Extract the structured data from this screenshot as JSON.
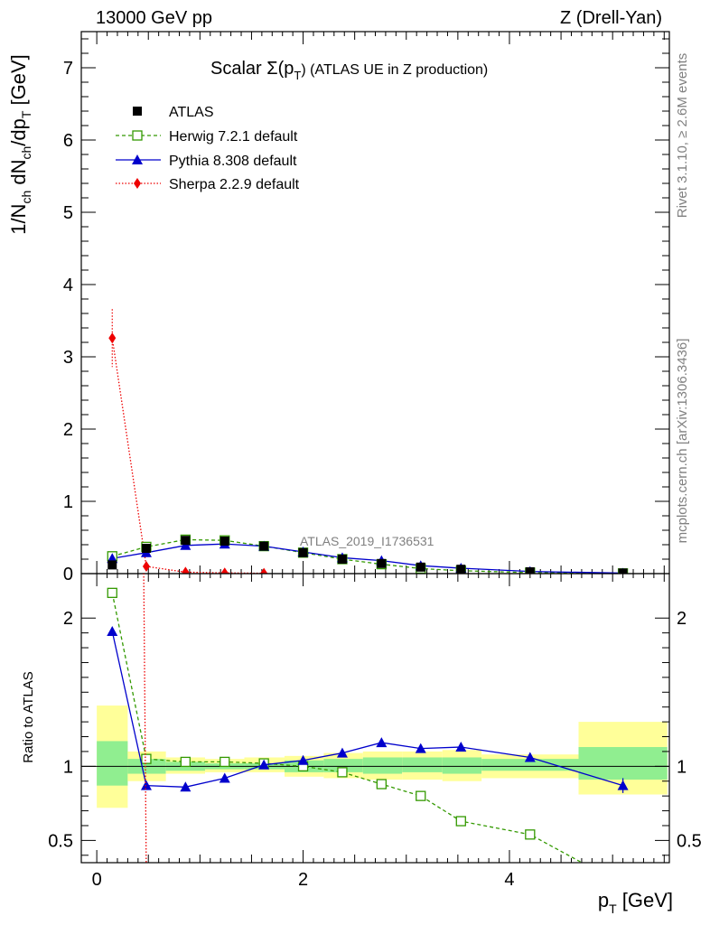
{
  "header": {
    "left": "13000 GeV pp",
    "right": "Z (Drell-Yan)"
  },
  "side_text": {
    "rivet": "Rivet 3.1.10, ≥ 2.6M events",
    "mcplots": "mcplots.cern.ch [arXiv:1306.3436]"
  },
  "watermark": "ATLAS_2019_I1736531",
  "chart_data": {
    "type": "scatter",
    "title": "Scalar Σ(pT) (ATLAS UE in Z production)",
    "title_main": "Scalar Σ(p",
    "title_sub": "T",
    "title_rest": ") (ATLAS UE in Z production)",
    "ylabel_main": "1/N",
    "ylabel_sub1": "ch",
    "ylabel_mid": " dN",
    "ylabel_sub2": "ch",
    "ylabel_mid2": "/dp",
    "ylabel_sub3": "T",
    "ylabel_unit": " [GeV]",
    "xlabel_main": "p",
    "xlabel_sub": "T",
    "xlabel_unit": " [GeV]",
    "ratio_ylabel": "Ratio to ATLAS",
    "xlim": [
      -0.15,
      5.55
    ],
    "ylim_main": [
      0,
      7.5
    ],
    "ylim_ratio": [
      0.35,
      2.3
    ],
    "x_ticks": [
      "0",
      "2",
      "4"
    ],
    "y_ticks_main": [
      "0",
      "1",
      "2",
      "3",
      "4",
      "5",
      "6",
      "7"
    ],
    "y_ticks_ratio": [
      "0.5",
      "1",
      "2"
    ],
    "legend_position": "top-left",
    "x": [
      0.15,
      0.48,
      0.86,
      1.24,
      1.62,
      2.0,
      2.38,
      2.76,
      3.14,
      3.53,
      4.2,
      5.1
    ],
    "bin_edges": [
      0.0,
      0.3,
      0.67,
      1.05,
      1.43,
      1.82,
      2.2,
      2.58,
      2.96,
      3.35,
      3.73,
      4.67,
      5.53
    ],
    "series": [
      {
        "name": "ATLAS",
        "color": "#000000",
        "marker": "square",
        "values": [
          0.12,
          0.35,
          0.46,
          0.45,
          0.38,
          0.29,
          0.2,
          0.14,
          0.09,
          0.06,
          0.025,
          0.008
        ]
      },
      {
        "name": "Herwig 7.2.1 default",
        "color": "#339900",
        "marker": "open-square",
        "line": "dashed",
        "values": [
          0.24,
          0.37,
          0.47,
          0.46,
          0.38,
          0.29,
          0.2,
          0.13,
          0.07,
          0.04,
          0.014,
          0.003
        ],
        "ratio": [
          2.17,
          1.05,
          1.03,
          1.03,
          1.02,
          1.0,
          0.96,
          0.88,
          0.8,
          0.63,
          0.54,
          0.2
        ]
      },
      {
        "name": "Pythia 8.308 default",
        "color": "#0000cc",
        "marker": "triangle",
        "line": "solid",
        "values": [
          0.21,
          0.29,
          0.39,
          0.41,
          0.38,
          0.3,
          0.22,
          0.18,
          0.11,
          0.075,
          0.03,
          0.007
        ],
        "ratio": [
          1.91,
          0.87,
          0.86,
          0.92,
          1.01,
          1.04,
          1.09,
          1.16,
          1.12,
          1.13,
          1.06,
          0.87
        ],
        "ratio_err": [
          0.03,
          0.01,
          0.01,
          0.01,
          0.01,
          0.01,
          0.01,
          0.02,
          0.02,
          0.02,
          0.03,
          0.05
        ]
      },
      {
        "name": "Sherpa 2.2.9 default",
        "color": "#ee0000",
        "marker": "diamond",
        "line": "dotted",
        "x": [
          0.15,
          0.48,
          0.86,
          1.24,
          1.62
        ],
        "values": [
          3.26,
          0.1,
          0.02,
          0.01,
          0.005
        ],
        "err_low": [
          0.4,
          0.01,
          0.005,
          0.003,
          0.002
        ],
        "err_high": [
          0.4,
          0.01,
          0.005,
          0.003,
          0.002
        ],
        "ratio": [
          27.0,
          0.29,
          0.04,
          0.02,
          0.01
        ]
      }
    ],
    "ratio_bands": {
      "green_low": [
        0.87,
        0.95,
        0.97,
        0.98,
        0.98,
        0.96,
        0.96,
        0.95,
        0.96,
        0.95,
        0.97,
        0.91
      ],
      "green_high": [
        1.17,
        1.05,
        1.03,
        1.02,
        1.02,
        1.04,
        1.05,
        1.06,
        1.06,
        1.06,
        1.05,
        1.13
      ],
      "yellow_low": [
        0.72,
        0.9,
        0.95,
        0.96,
        0.96,
        0.93,
        0.92,
        0.91,
        0.91,
        0.9,
        0.92,
        0.81
      ],
      "yellow_high": [
        1.41,
        1.1,
        1.06,
        1.05,
        1.06,
        1.07,
        1.09,
        1.1,
        1.1,
        1.11,
        1.08,
        1.3
      ],
      "green_color": "#90ee90",
      "yellow_color": "#ffff99"
    }
  }
}
